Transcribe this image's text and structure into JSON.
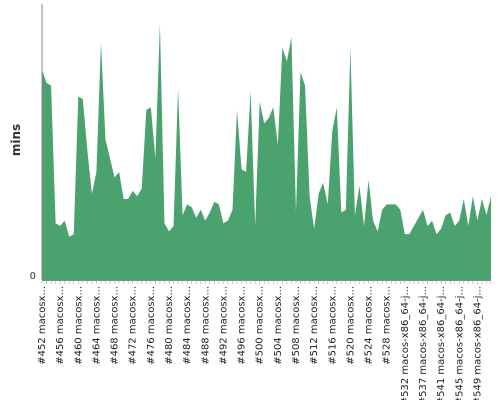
{
  "chart_data": {
    "type": "area",
    "ylabel": "mins",
    "y_ticks": [
      0
    ],
    "ylim": [
      0,
      1.0
    ],
    "grid": false,
    "color": "#4aa36e",
    "axis_color": "#888888",
    "tick_labels": [
      {
        "text": "#452 macosx...",
        "index": 0
      },
      {
        "text": "#456 macosx...",
        "index": 4
      },
      {
        "text": "#460 macosx...",
        "index": 8
      },
      {
        "text": "#464 macosx...",
        "index": 12
      },
      {
        "text": "#468 macosx...",
        "index": 16
      },
      {
        "text": "#472 macosx...",
        "index": 20
      },
      {
        "text": "#476 macosx...",
        "index": 24
      },
      {
        "text": "#480 macosx...",
        "index": 28
      },
      {
        "text": "#484 macosx...",
        "index": 32
      },
      {
        "text": "#488 macosx...",
        "index": 36
      },
      {
        "text": "#492 macosx...",
        "index": 40
      },
      {
        "text": "#496 macosx...",
        "index": 44
      },
      {
        "text": "#500 macosx...",
        "index": 48
      },
      {
        "text": "#504 macosx...",
        "index": 52
      },
      {
        "text": "#508 macosx...",
        "index": 56
      },
      {
        "text": "#512 macosx...",
        "index": 60
      },
      {
        "text": "#516 macosx...",
        "index": 64
      },
      {
        "text": "#520 macosx...",
        "index": 68
      },
      {
        "text": "#524 macosx...",
        "index": 72
      },
      {
        "text": "#528 macosx...",
        "index": 76
      },
      {
        "text": "#532 macos-x86_64-j...",
        "index": 80
      },
      {
        "text": "#537 macos-x86_64-j...",
        "index": 84
      },
      {
        "text": "#541 macos-x86_64-j...",
        "index": 88
      },
      {
        "text": "#545 macos-x86_64-j...",
        "index": 92
      },
      {
        "text": "#549 macos-x86_64-j...",
        "index": 96
      }
    ],
    "values": [
      0.78,
      0.73,
      0.72,
      0.21,
      0.2,
      0.22,
      0.16,
      0.17,
      0.68,
      0.67,
      0.48,
      0.32,
      0.4,
      0.88,
      0.52,
      0.45,
      0.38,
      0.4,
      0.3,
      0.3,
      0.33,
      0.31,
      0.34,
      0.63,
      0.64,
      0.45,
      0.95,
      0.21,
      0.18,
      0.2,
      0.71,
      0.24,
      0.28,
      0.27,
      0.23,
      0.26,
      0.22,
      0.25,
      0.29,
      0.28,
      0.21,
      0.22,
      0.26,
      0.63,
      0.41,
      0.4,
      0.7,
      0.2,
      0.66,
      0.58,
      0.6,
      0.64,
      0.5,
      0.86,
      0.81,
      0.9,
      0.25,
      0.77,
      0.72,
      0.31,
      0.19,
      0.32,
      0.36,
      0.28,
      0.55,
      0.64,
      0.25,
      0.26,
      0.86,
      0.24,
      0.35,
      0.2,
      0.37,
      0.22,
      0.18,
      0.26,
      0.28,
      0.28,
      0.28,
      0.26,
      0.17,
      0.17,
      0.2,
      0.23,
      0.26,
      0.2,
      0.22,
      0.17,
      0.19,
      0.24,
      0.25,
      0.2,
      0.22,
      0.3,
      0.2,
      0.31,
      0.22,
      0.3,
      0.24,
      0.31
    ]
  }
}
